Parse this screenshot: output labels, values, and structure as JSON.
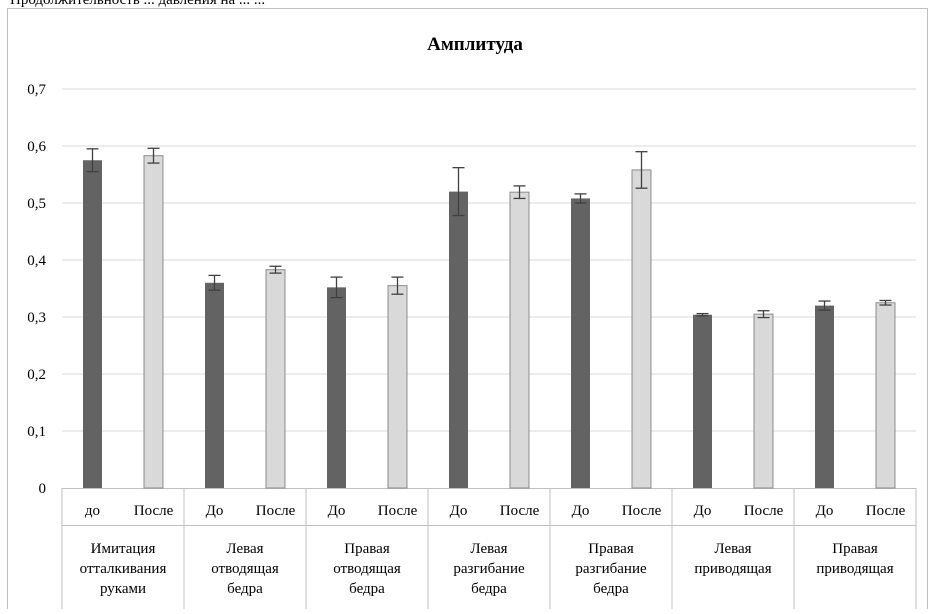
{
  "page_header": "Продолжительность ... давления на ... ...",
  "chart_data": {
    "type": "bar",
    "title": "Амплитуда",
    "ylim": [
      0,
      0.7
    ],
    "yticks": [
      "0",
      "0,1",
      "0,2",
      "0,3",
      "0,4",
      "0,5",
      "0,6",
      "0,7"
    ],
    "grid": true,
    "legend": "none",
    "colors": {
      "before": "#636363",
      "after": "#d9d9d9",
      "after_border": "#8c8c8c",
      "grid": "#d9d9d9",
      "axis": "#bfbfbf",
      "error": "#404040"
    },
    "groups": [
      {
        "label_lines": [
          "Имитация",
          "отталкивания",
          "руками"
        ],
        "bars": [
          {
            "label": "до",
            "value": 0.575,
            "err": 0.02,
            "kind": "before"
          },
          {
            "label": "После",
            "value": 0.583,
            "err": 0.013,
            "kind": "after"
          }
        ]
      },
      {
        "label_lines": [
          "Левая",
          "отводящая",
          "бедра"
        ],
        "bars": [
          {
            "label": "До",
            "value": 0.36,
            "err": 0.013,
            "kind": "before"
          },
          {
            "label": "После",
            "value": 0.383,
            "err": 0.006,
            "kind": "after"
          }
        ]
      },
      {
        "label_lines": [
          "Правая",
          "отводящая",
          "бедра"
        ],
        "bars": [
          {
            "label": "До",
            "value": 0.352,
            "err": 0.018,
            "kind": "before"
          },
          {
            "label": "После",
            "value": 0.355,
            "err": 0.015,
            "kind": "after"
          }
        ]
      },
      {
        "label_lines": [
          "Левая",
          "разгибание",
          "бедра"
        ],
        "bars": [
          {
            "label": "До",
            "value": 0.52,
            "err": 0.042,
            "kind": "before"
          },
          {
            "label": "После",
            "value": 0.519,
            "err": 0.011,
            "kind": "after"
          }
        ]
      },
      {
        "label_lines": [
          "Правая",
          "разгибание",
          "бедра"
        ],
        "bars": [
          {
            "label": "До",
            "value": 0.508,
            "err": 0.008,
            "kind": "before"
          },
          {
            "label": "После",
            "value": 0.558,
            "err": 0.032,
            "kind": "after"
          }
        ]
      },
      {
        "label_lines": [
          "Левая",
          "приводящая"
        ],
        "bars": [
          {
            "label": "До",
            "value": 0.304,
            "err": 0.002,
            "kind": "before"
          },
          {
            "label": "После",
            "value": 0.305,
            "err": 0.006,
            "kind": "after"
          }
        ]
      },
      {
        "label_lines": [
          "Правая",
          "приводящая"
        ],
        "bars": [
          {
            "label": "До",
            "value": 0.32,
            "err": 0.008,
            "kind": "before"
          },
          {
            "label": "После",
            "value": 0.325,
            "err": 0.004,
            "kind": "after"
          }
        ]
      }
    ]
  }
}
